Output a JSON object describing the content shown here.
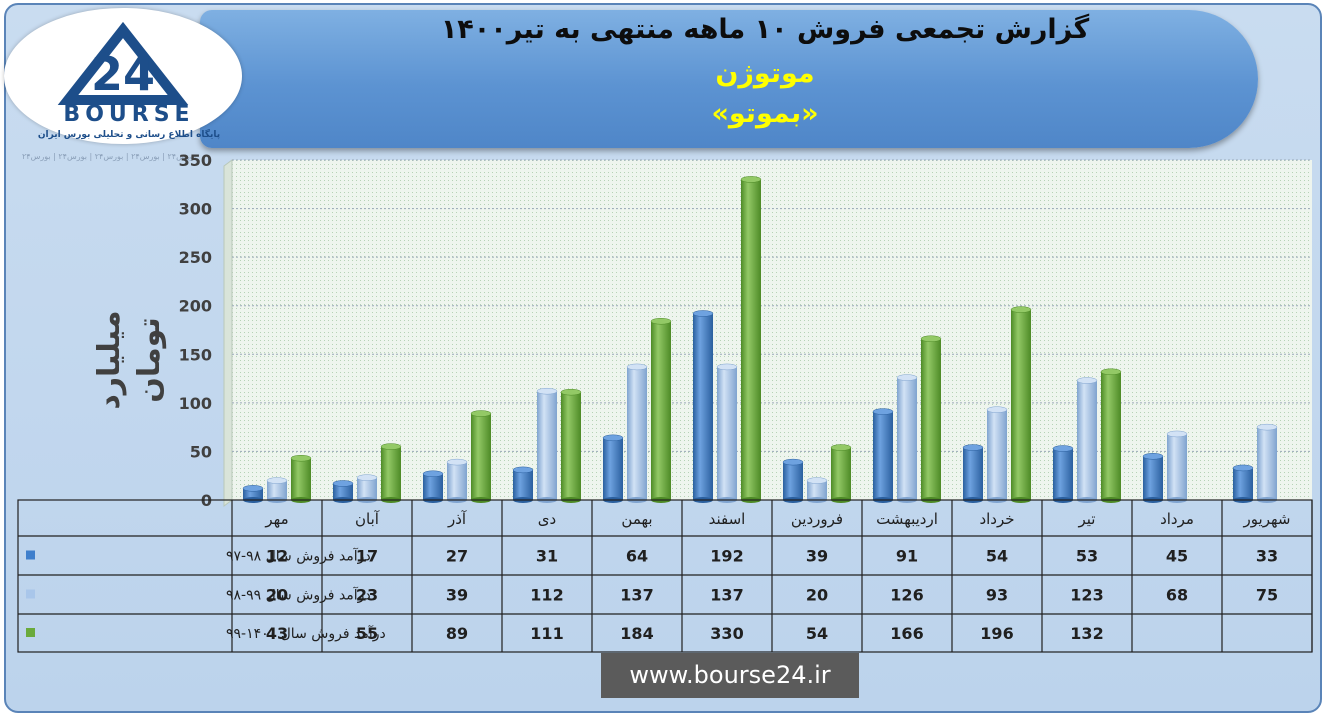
{
  "header": {
    "title": "گزارش تجمعی فروش ۱۰ ماهه منتهی به تیر۱۴۰۰",
    "company": "موتوژن",
    "symbol": "«بموتو»"
  },
  "logo": {
    "word": "BOURSE",
    "tagline": "پایگاه اطلاع رسانی و تحلیلی بورس ایران",
    "mark": "24"
  },
  "watermark": "بورس۲۴ | بورس۲۴ | بورس۲۴ | بورس۲۴ | بورس۲۴",
  "footer": {
    "url": "www.bourse24.ir"
  },
  "colors": {
    "series1": "#3f7fcc",
    "series2": "#a9c6ea",
    "series3": "#6aaa3c",
    "banner": "#5c93d2",
    "title_highlight": "#ffff00"
  },
  "chart_data": {
    "type": "bar",
    "title": "گزارش تجمعی فروش ۱۰ ماهه منتهی به تیر۱۴۰۰",
    "ylabel": "میلیارد تومان",
    "xlabel": "",
    "ylim": [
      0,
      350
    ],
    "yticks": [
      0,
      50,
      100,
      150,
      200,
      250,
      300,
      350
    ],
    "grid": true,
    "legend": "table-left",
    "categories": [
      "مهر",
      "آبان",
      "آذر",
      "دی",
      "بهمن",
      "اسفند",
      "فروردین",
      "اردیبهشت",
      "خرداد",
      "تیر",
      "مرداد",
      "شهریور"
    ],
    "series": [
      {
        "name": "درآمد فروش سال ۹۸-۹۷",
        "values": [
          12,
          17,
          27,
          31,
          64,
          192,
          39,
          91,
          54,
          53,
          45,
          33
        ]
      },
      {
        "name": "درآمد فروش سال ۹۹-۹۸",
        "values": [
          20,
          23,
          39,
          112,
          137,
          137,
          20,
          126,
          93,
          123,
          68,
          75
        ]
      },
      {
        "name": "درآمد فروش سال ۱۴۰۰-۹۹",
        "values": [
          43,
          55,
          89,
          111,
          184,
          330,
          54,
          166,
          196,
          132,
          null,
          null
        ]
      }
    ]
  }
}
